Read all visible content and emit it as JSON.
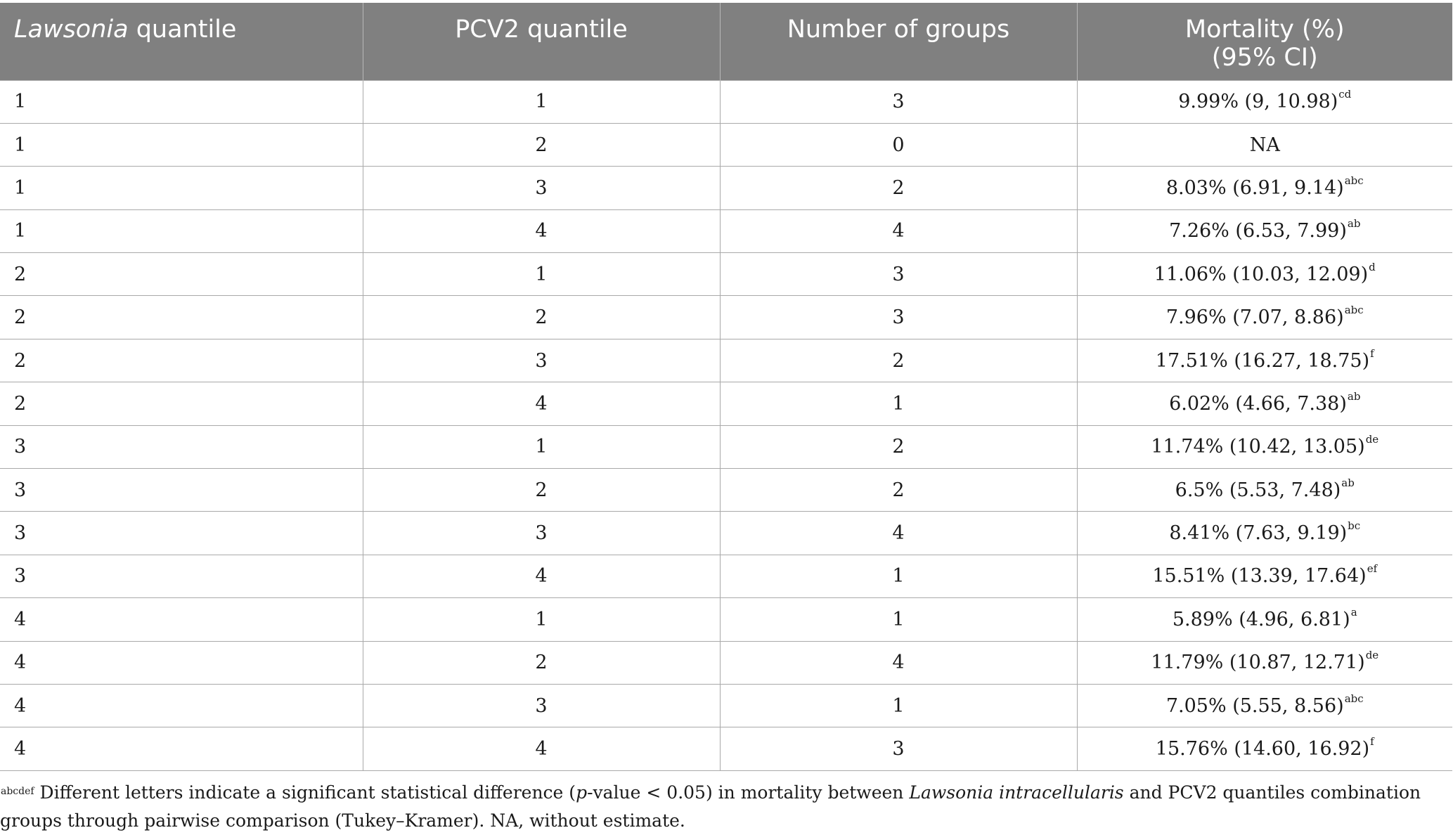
{
  "table": {
    "headers": {
      "col1_italic": "Lawsonia",
      "col1_rest": " quantile",
      "col2": "PCV2 quantile",
      "col3": "Number of groups",
      "col4_line1": "Mortality (%)",
      "col4_line2": "(95% CI)"
    },
    "rows": [
      {
        "lawsonia": "1",
        "pcv2": "1",
        "groups": "3",
        "mortality": "9.99% (9, 10.98)",
        "sup": "cd"
      },
      {
        "lawsonia": "1",
        "pcv2": "2",
        "groups": "0",
        "mortality": "NA",
        "sup": ""
      },
      {
        "lawsonia": "1",
        "pcv2": "3",
        "groups": "2",
        "mortality": "8.03% (6.91, 9.14)",
        "sup": "abc"
      },
      {
        "lawsonia": "1",
        "pcv2": "4",
        "groups": "4",
        "mortality": "7.26% (6.53, 7.99)",
        "sup": "ab"
      },
      {
        "lawsonia": "2",
        "pcv2": "1",
        "groups": "3",
        "mortality": "11.06% (10.03, 12.09)",
        "sup": "d"
      },
      {
        "lawsonia": "2",
        "pcv2": "2",
        "groups": "3",
        "mortality": "7.96% (7.07, 8.86)",
        "sup": "abc"
      },
      {
        "lawsonia": "2",
        "pcv2": "3",
        "groups": "2",
        "mortality": "17.51% (16.27, 18.75)",
        "sup": "f"
      },
      {
        "lawsonia": "2",
        "pcv2": "4",
        "groups": "1",
        "mortality": "6.02% (4.66, 7.38)",
        "sup": "ab"
      },
      {
        "lawsonia": "3",
        "pcv2": "1",
        "groups": "2",
        "mortality": "11.74% (10.42, 13.05)",
        "sup": "de"
      },
      {
        "lawsonia": "3",
        "pcv2": "2",
        "groups": "2",
        "mortality": "6.5% (5.53, 7.48)",
        "sup": "ab"
      },
      {
        "lawsonia": "3",
        "pcv2": "3",
        "groups": "4",
        "mortality": "8.41% (7.63, 9.19)",
        "sup": "bc"
      },
      {
        "lawsonia": "3",
        "pcv2": "4",
        "groups": "1",
        "mortality": "15.51% (13.39, 17.64)",
        "sup": "ef"
      },
      {
        "lawsonia": "4",
        "pcv2": "1",
        "groups": "1",
        "mortality": "5.89% (4.96, 6.81)",
        "sup": "a"
      },
      {
        "lawsonia": "4",
        "pcv2": "2",
        "groups": "4",
        "mortality": "11.79% (10.87, 12.71)",
        "sup": "de"
      },
      {
        "lawsonia": "4",
        "pcv2": "3",
        "groups": "1",
        "mortality": "7.05% (5.55, 8.56)",
        "sup": "abc"
      },
      {
        "lawsonia": "4",
        "pcv2": "4",
        "groups": "3",
        "mortality": "15.76% (14.60, 16.92)",
        "sup": "f"
      }
    ]
  },
  "footnote": {
    "sup": "abcdef",
    "part1": " Different letters indicate a significant statistical difference (",
    "p_italic": "p",
    "part2": "-value < 0.05) in mortality between ",
    "species_italic": "Lawsonia intracellularis",
    "part3": " and PCV2 quantiles combination groups through pairwise comparison (Tukey–Kramer). NA, without estimate."
  }
}
